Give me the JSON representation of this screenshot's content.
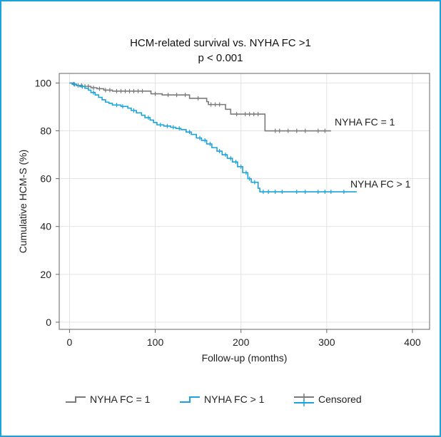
{
  "colors": {
    "frame": "#1aa3dd",
    "series1": "#7a7a7a",
    "series2": "#1aa3dd",
    "grid": "#e3e3e3",
    "axis": "#666666"
  },
  "chart_data": {
    "type": "line",
    "subtype": "kaplan-meier",
    "title": "HCM-related survival vs. NYHA FC >1",
    "subtitle": "p < 0.001",
    "xlabel": "Follow-up (months)",
    "ylabel": "Cumulative HCM-S (%)",
    "xlim": [
      -12,
      420
    ],
    "ylim": [
      -3,
      104
    ],
    "xticks": [
      0,
      100,
      200,
      300,
      400
    ],
    "yticks": [
      0,
      20,
      40,
      60,
      80,
      100
    ],
    "grid": true,
    "legend_position": "bottom",
    "legend": [
      "NYHA FC = 1",
      "NYHA FC > 1",
      "Censored"
    ],
    "series": [
      {
        "name": "NYHA FC = 1",
        "label": "NYHA FC = 1",
        "color": "#7a7a7a",
        "steps": [
          [
            0,
            100
          ],
          [
            3,
            99.5
          ],
          [
            8,
            99
          ],
          [
            15,
            98.6
          ],
          [
            25,
            98
          ],
          [
            32,
            97.6
          ],
          [
            40,
            97
          ],
          [
            50,
            96.6
          ],
          [
            95,
            95.5
          ],
          [
            108,
            95
          ],
          [
            140,
            93.6
          ],
          [
            160,
            92.2
          ],
          [
            162,
            91
          ],
          [
            182,
            89
          ],
          [
            188,
            87
          ],
          [
            228,
            80
          ],
          [
            305,
            80
          ]
        ],
        "censored": [
          [
            5,
            99.6
          ],
          [
            10,
            99
          ],
          [
            14,
            99
          ],
          [
            18,
            98.6
          ],
          [
            22,
            98.6
          ],
          [
            28,
            98
          ],
          [
            35,
            97.6
          ],
          [
            42,
            97
          ],
          [
            47,
            97
          ],
          [
            55,
            96.6
          ],
          [
            60,
            96.6
          ],
          [
            65,
            96.6
          ],
          [
            70,
            96.6
          ],
          [
            75,
            96.6
          ],
          [
            80,
            96.6
          ],
          [
            85,
            96.6
          ],
          [
            100,
            95.5
          ],
          [
            115,
            95
          ],
          [
            125,
            95
          ],
          [
            135,
            95
          ],
          [
            150,
            93.6
          ],
          [
            165,
            91
          ],
          [
            170,
            91
          ],
          [
            175,
            91
          ],
          [
            195,
            87
          ],
          [
            205,
            87
          ],
          [
            210,
            87
          ],
          [
            215,
            87
          ],
          [
            220,
            87
          ],
          [
            240,
            80
          ],
          [
            245,
            80
          ],
          [
            255,
            80
          ],
          [
            265,
            80
          ],
          [
            275,
            80
          ],
          [
            290,
            80
          ],
          [
            298,
            80
          ]
        ]
      },
      {
        "name": "NYHA FC > 1",
        "label": "NYHA FC > 1",
        "color": "#1aa3dd",
        "steps": [
          [
            0,
            100
          ],
          [
            4,
            99.4
          ],
          [
            8,
            99
          ],
          [
            12,
            98.5
          ],
          [
            18,
            97.8
          ],
          [
            22,
            97
          ],
          [
            25,
            96
          ],
          [
            30,
            95
          ],
          [
            34,
            94
          ],
          [
            38,
            93
          ],
          [
            42,
            92
          ],
          [
            46,
            91.5
          ],
          [
            50,
            90.8
          ],
          [
            60,
            90.2
          ],
          [
            68,
            89.5
          ],
          [
            72,
            88.5
          ],
          [
            78,
            87.5
          ],
          [
            84,
            86.5
          ],
          [
            88,
            85.5
          ],
          [
            94,
            84.5
          ],
          [
            98,
            83.5
          ],
          [
            102,
            82.5
          ],
          [
            110,
            82
          ],
          [
            118,
            81.5
          ],
          [
            124,
            81
          ],
          [
            130,
            80.5
          ],
          [
            136,
            79.5
          ],
          [
            142,
            78.5
          ],
          [
            148,
            77
          ],
          [
            154,
            76
          ],
          [
            160,
            74.5
          ],
          [
            166,
            73
          ],
          [
            172,
            71.5
          ],
          [
            178,
            70
          ],
          [
            184,
            68.5
          ],
          [
            190,
            67
          ],
          [
            196,
            65
          ],
          [
            202,
            62.5
          ],
          [
            208,
            60
          ],
          [
            212,
            58.5
          ],
          [
            220,
            56
          ],
          [
            222,
            54.5
          ],
          [
            335,
            54.5
          ]
        ],
        "censored": [
          [
            6,
            99.4
          ],
          [
            15,
            98.5
          ],
          [
            28,
            96
          ],
          [
            55,
            90.8
          ],
          [
            62,
            90.2
          ],
          [
            75,
            88.5
          ],
          [
            92,
            85.5
          ],
          [
            106,
            82.5
          ],
          [
            114,
            82
          ],
          [
            121,
            81.5
          ],
          [
            128,
            81
          ],
          [
            140,
            79.5
          ],
          [
            152,
            77
          ],
          [
            158,
            76
          ],
          [
            164,
            74.5
          ],
          [
            175,
            71.5
          ],
          [
            182,
            70
          ],
          [
            188,
            68.5
          ],
          [
            194,
            67
          ],
          [
            200,
            65
          ],
          [
            206,
            62.5
          ],
          [
            210,
            60
          ],
          [
            216,
            58.5
          ],
          [
            226,
            54.5
          ],
          [
            232,
            54.5
          ],
          [
            240,
            54.5
          ],
          [
            248,
            54.5
          ],
          [
            265,
            54.5
          ],
          [
            275,
            54.5
          ],
          [
            290,
            54.5
          ],
          [
            298,
            54.5
          ],
          [
            305,
            54.5
          ],
          [
            320,
            54.5
          ]
        ]
      }
    ]
  }
}
